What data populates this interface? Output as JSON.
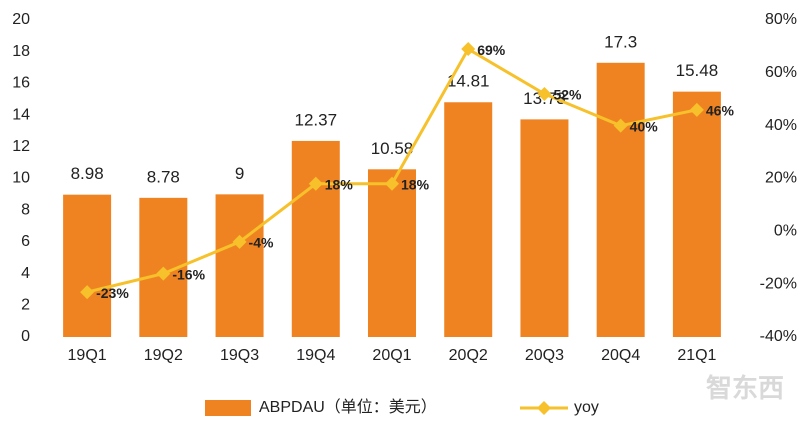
{
  "chart_data": {
    "type": "bar-line",
    "categories": [
      "19Q1",
      "19Q2",
      "19Q3",
      "19Q4",
      "20Q1",
      "20Q2",
      "20Q3",
      "20Q4",
      "21Q1"
    ],
    "series": [
      {
        "name": "ABPDAU（单位：美元）",
        "color": "#f08321",
        "type": "bar",
        "values": [
          8.98,
          8.78,
          9,
          12.37,
          10.58,
          14.81,
          13.73,
          17.3,
          15.48
        ]
      },
      {
        "name": "yoy",
        "color": "#f6c12b",
        "type": "line",
        "axis": "y2",
        "values": [
          -23,
          -16,
          -4,
          18,
          18,
          69,
          52,
          40,
          46
        ],
        "value_labels": [
          "-23%",
          "-16%",
          "-4%",
          "18%",
          "18%",
          "69%",
          "52%",
          "40%",
          "46%"
        ]
      }
    ],
    "ylim": [
      0,
      20
    ],
    "yticks": [
      0,
      2,
      4,
      6,
      8,
      10,
      12,
      14,
      16,
      18,
      20
    ],
    "y2lim": [
      -40,
      80
    ],
    "y2ticks": [
      {
        "value": -40,
        "label": "-40%"
      },
      {
        "value": -20,
        "label": "-20%"
      },
      {
        "value": 0,
        "label": "0%"
      },
      {
        "value": 20,
        "label": "20%"
      },
      {
        "value": 40,
        "label": "40%"
      },
      {
        "value": 60,
        "label": "60%"
      },
      {
        "value": 80,
        "label": "80%"
      }
    ],
    "grid": false,
    "legend": "bottom",
    "watermark": "智东西"
  }
}
